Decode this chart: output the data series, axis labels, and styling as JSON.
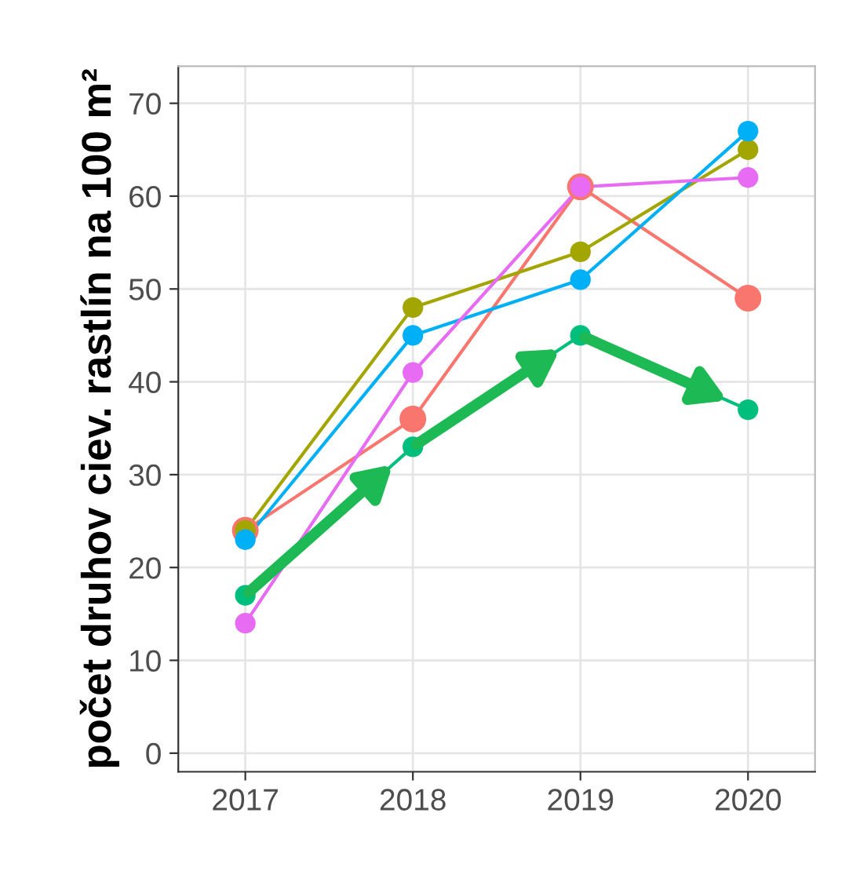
{
  "chart_data": {
    "type": "line",
    "ylabel": "počet druhov ciev. rastlín na 100 m²",
    "categories": [
      "2017",
      "2018",
      "2019",
      "2020"
    ],
    "series": [
      {
        "color": "#F8766D",
        "values": [
          24,
          36,
          61,
          49
        ]
      },
      {
        "color": "#A3A500",
        "values": [
          24,
          48,
          54,
          65
        ]
      },
      {
        "color": "#00BF7D",
        "values": [
          17,
          33,
          45,
          37
        ]
      },
      {
        "color": "#00B0F6",
        "values": [
          23,
          45,
          51,
          67
        ]
      },
      {
        "color": "#E76BF3",
        "values": [
          14,
          41,
          61,
          62
        ]
      }
    ],
    "ylim": [
      -2,
      74
    ],
    "yticks": [
      0,
      10,
      20,
      30,
      40,
      50,
      60,
      70
    ],
    "grid": true,
    "marker": "circle",
    "line_style": "solid"
  }
}
